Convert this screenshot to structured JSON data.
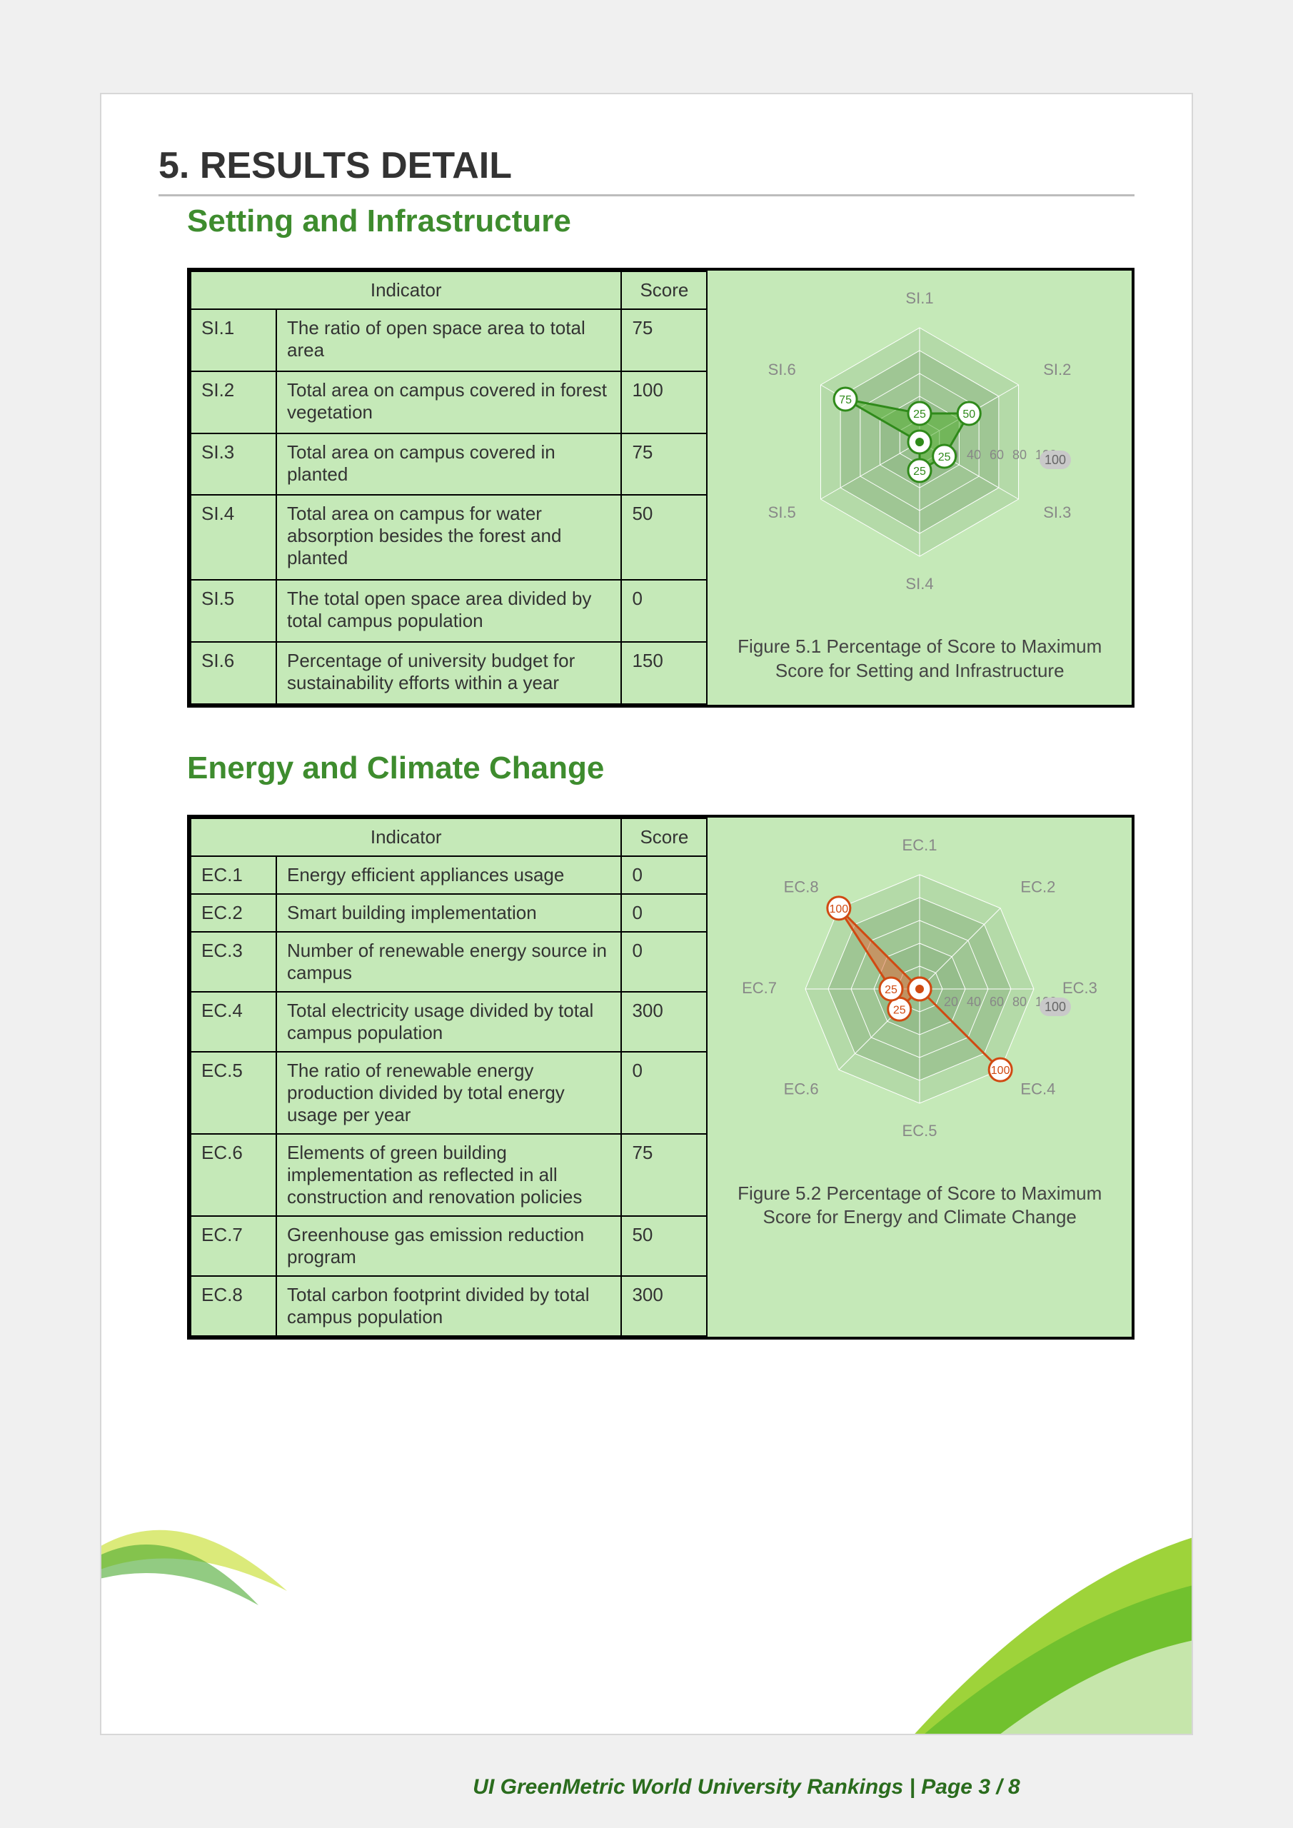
{
  "title": "5. RESULTS DETAIL",
  "footer": "UI GreenMetric World University Rankings | Page 3 / 8",
  "palette": {
    "page_bg": "#f0f0f0",
    "panel_bg": "#c5e9b8",
    "heading_green": "#3e8c2e",
    "radar_si_fill": "#55b033",
    "radar_si_stroke": "#2f8a1a",
    "radar_ec_fill": "#e07040",
    "radar_ec_stroke": "#d04a12",
    "radar_grid": "#a0c795",
    "radar_grid_dark": "#7fa876",
    "axis_label": "#888888"
  },
  "si": {
    "heading": "Setting and Infrastructure",
    "caption": "Figure 5.1 Percentage of Score to Maximum Score for Setting and Infrastructure",
    "table_headers": {
      "indicator": "Indicator",
      "score": "Score"
    },
    "rows": [
      {
        "code": "SI.1",
        "desc": "The ratio of open space area to total area",
        "score": "75"
      },
      {
        "code": "SI.2",
        "desc": "Total area on campus covered in forest vegetation",
        "score": "100"
      },
      {
        "code": "SI.3",
        "desc": "Total area on campus covered in planted",
        "score": "75"
      },
      {
        "code": "SI.4",
        "desc": "Total area on campus for water absorption besides the forest and planted",
        "score": "50"
      },
      {
        "code": "SI.5",
        "desc": "The total open space area divided by total campus population",
        "score": "0"
      },
      {
        "code": "SI.6",
        "desc": "Percentage of university budget for sustainability efforts within a year",
        "score": "150"
      }
    ],
    "radar": {
      "axes": [
        "SI.1",
        "SI.2",
        "SI.3",
        "SI.4",
        "SI.5",
        "SI.6"
      ],
      "rings": [
        20,
        40,
        60,
        80,
        100
      ],
      "ring_labels": [
        "20",
        "40",
        "60",
        "80",
        "100"
      ],
      "values": [
        25,
        50,
        25,
        25,
        0,
        75
      ],
      "value_labels": [
        "25",
        "50",
        "25",
        "25",
        "0",
        "75"
      ]
    }
  },
  "ec": {
    "heading": "Energy and Climate Change",
    "caption": "Figure 5.2 Percentage of Score to Maximum Score for Energy and Climate Change",
    "table_headers": {
      "indicator": "Indicator",
      "score": "Score"
    },
    "rows": [
      {
        "code": "EC.1",
        "desc": "Energy efficient appliances usage",
        "score": "0"
      },
      {
        "code": "EC.2",
        "desc": "Smart building implementation",
        "score": "0"
      },
      {
        "code": "EC.3",
        "desc": "Number of renewable energy source in campus",
        "score": "0"
      },
      {
        "code": "EC.4",
        "desc": "Total electricity usage divided by total campus population",
        "score": "300"
      },
      {
        "code": "EC.5",
        "desc": "The ratio of renewable energy production divided by total energy usage per year",
        "score": "0"
      },
      {
        "code": "EC.6",
        "desc": "Elements of green building implementation as reflected in all construction and renovation policies",
        "score": "75"
      },
      {
        "code": "EC.7",
        "desc": "Greenhouse gas emission reduction program",
        "score": "50"
      },
      {
        "code": "EC.8",
        "desc": "Total carbon footprint divided by total campus population",
        "score": "300"
      }
    ],
    "radar": {
      "axes": [
        "EC.1",
        "EC.2",
        "EC.3",
        "EC.4",
        "EC.5",
        "EC.6",
        "EC.7",
        "EC.8"
      ],
      "rings": [
        20,
        40,
        60,
        80,
        100
      ],
      "ring_labels": [
        "20",
        "40",
        "60",
        "80",
        "100"
      ],
      "values": [
        0,
        0,
        0,
        100,
        0,
        25,
        25,
        100
      ],
      "value_labels": [
        "0",
        "0",
        "0",
        "100",
        "0",
        "25",
        "25",
        "100"
      ]
    }
  }
}
